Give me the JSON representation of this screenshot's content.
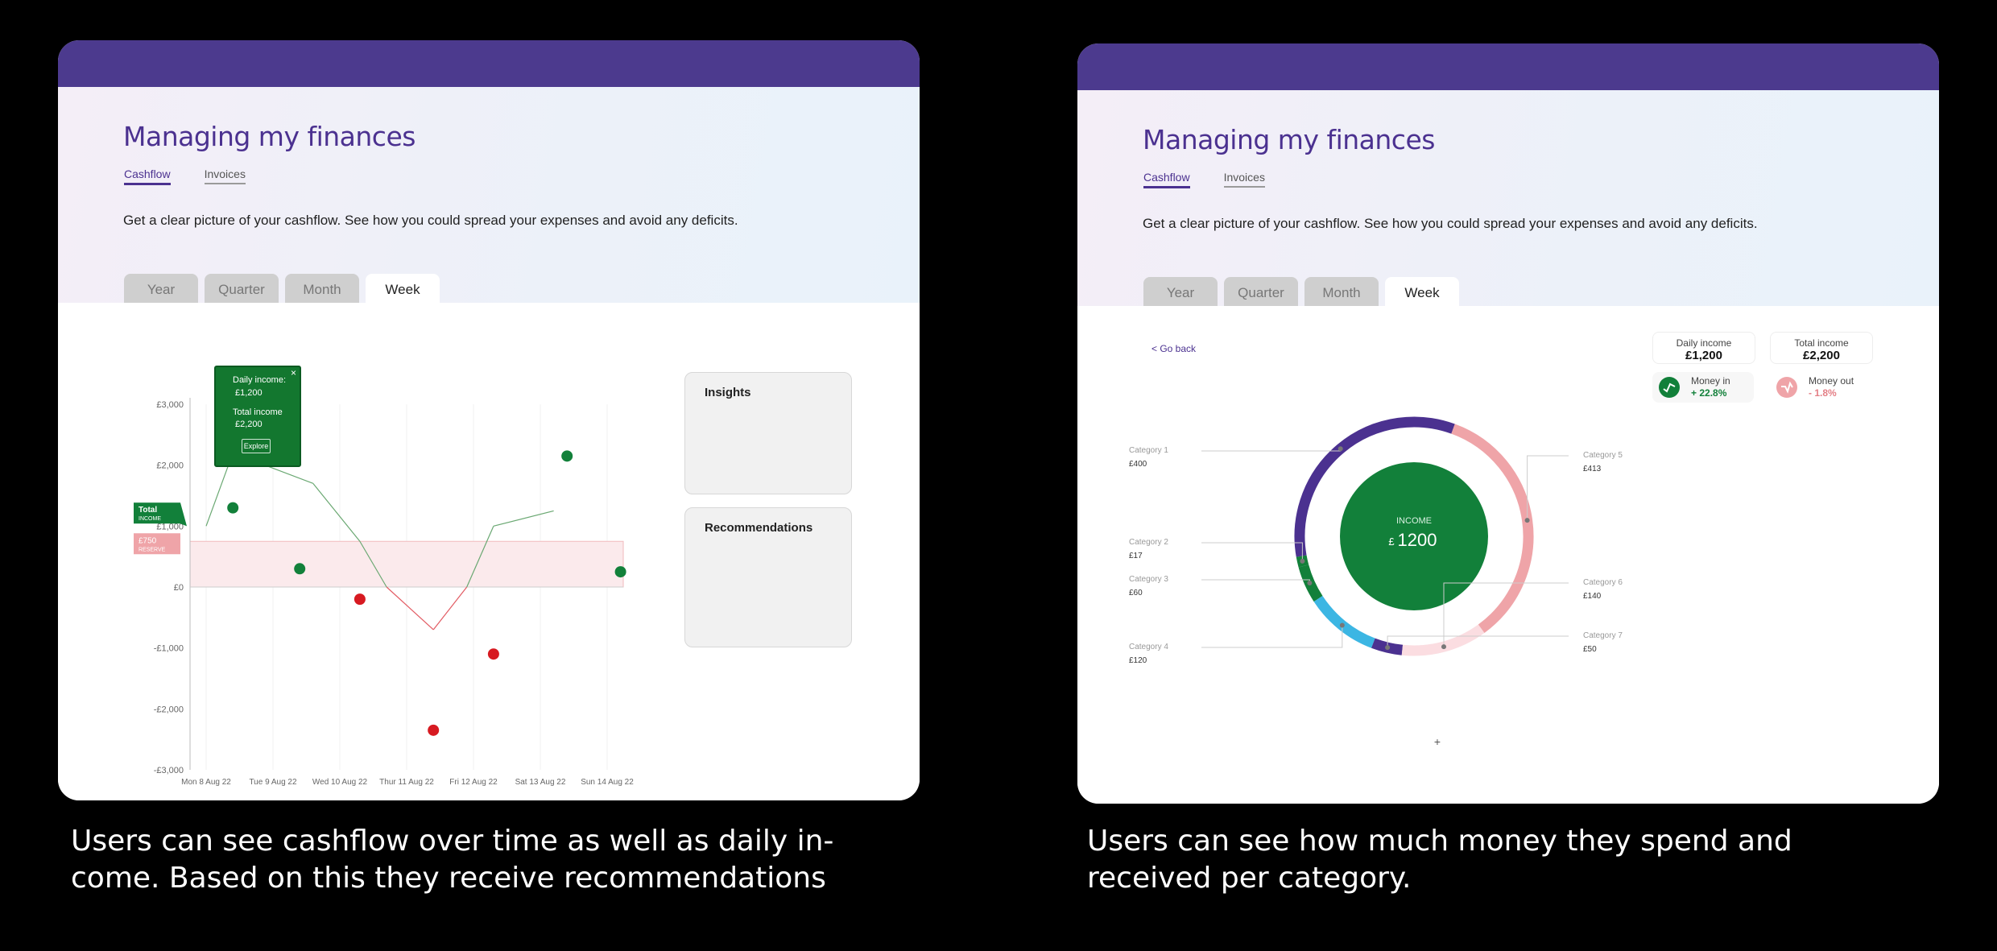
{
  "left": {
    "title": "Managing my finances",
    "nav": [
      "Cashflow",
      "Invoices"
    ],
    "description": "Get a clear picture of your cashflow. See how you could spread your expenses and avoid any deficits.",
    "tabs": [
      "Year",
      "Quarter",
      "Month",
      "Week"
    ],
    "active_tab": "Week",
    "insights_title": "Insights",
    "recommendations_title": "Recommendations",
    "tooltip": {
      "daily_label": "Daily income:",
      "daily_value": "£1,200",
      "total_label": "Total income",
      "total_value": "£2,200",
      "button": "Explore",
      "close": "×"
    },
    "total_tag": {
      "line1": "Total",
      "line2": "INCOME"
    },
    "reserve_tag": {
      "line1": "£750",
      "line2": "RESERVE"
    }
  },
  "right": {
    "title": "Managing my finances",
    "nav": [
      "Cashflow",
      "Invoices"
    ],
    "description": "Get a clear picture of your cashflow. See how you could spread your expenses and avoid any deficits.",
    "tabs": [
      "Year",
      "Quarter",
      "Month",
      "Week"
    ],
    "active_tab": "Week",
    "go_back": "< Go back",
    "daily_income": {
      "label": "Daily income",
      "value": "£1,200"
    },
    "total_income": {
      "label": "Total income",
      "value": "£2,200"
    },
    "money_in": {
      "label": "Money in",
      "value": "+ 22.8%"
    },
    "money_out": {
      "label": "Money out",
      "value": "- 1.8%"
    },
    "center": {
      "label": "INCOME",
      "currency": "£",
      "value": "1200"
    },
    "plus": "+"
  },
  "captions": {
    "left": "Users can see cashflow over time as well as daily in-\ncome. Based on this they receive recommendations",
    "right": "Users can see how much money they spend and\nreceived per category."
  },
  "chart_data": [
    {
      "type": "line",
      "x": [
        "Mon 8 Aug 22",
        "Tue 9 Aug 22",
        "Wed 10 Aug 22",
        "Thur 11 Aug 22",
        "Fri 12 Aug 22",
        "Sat 13 Aug 22",
        "Sun 14 Aug 22"
      ],
      "y_ticks": [
        "£3,000",
        "£2,000",
        "£1,000",
        "£0",
        "-£1,000",
        "-£2,000",
        "-£3,000"
      ],
      "ylim": [
        -3000,
        3000
      ],
      "reserve_value": 750,
      "series": [
        {
          "kind": "line",
          "points": [
            [
              0,
              1000
            ],
            [
              0.4,
              2200
            ],
            [
              1.6,
              1700
            ],
            [
              2.3,
              750
            ],
            [
              2.7,
              0
            ],
            [
              3.4,
              -700
            ],
            [
              3.9,
              0
            ],
            [
              4.3,
              1000
            ],
            [
              5.2,
              1250
            ]
          ]
        },
        {
          "kind": "points",
          "points": [
            [
              0.4,
              1300
            ],
            [
              1.4,
              300
            ],
            [
              2.3,
              -200
            ],
            [
              3.4,
              -2350
            ],
            [
              4.3,
              -1100
            ],
            [
              5.4,
              2150
            ],
            [
              6.2,
              250
            ]
          ]
        }
      ],
      "colors": {
        "positive": "#12803a",
        "negative": "#d71a21",
        "reserve": "#f2b9bd"
      }
    },
    {
      "type": "pie",
      "slices": [
        {
          "label": "Category 1",
          "value": 400,
          "display": "£400",
          "color": "#4b3190"
        },
        {
          "label": "Category 2",
          "value": 17,
          "display": "£17",
          "color": "#12803a"
        },
        {
          "label": "Category 3",
          "value": 60,
          "display": "£60",
          "color": "#12803a"
        },
        {
          "label": "Category 4",
          "value": 120,
          "display": "£120",
          "color": "#3cb6e3"
        },
        {
          "label": "Category 5",
          "value": 413,
          "display": "£413",
          "color": "#efa4a8"
        },
        {
          "label": "Category 6",
          "value": 140,
          "display": "£140",
          "color": "#fbdde1"
        },
        {
          "label": "Category 7",
          "value": 50,
          "display": "£50",
          "color": "#4b3190"
        }
      ],
      "center_value": 1200
    }
  ]
}
